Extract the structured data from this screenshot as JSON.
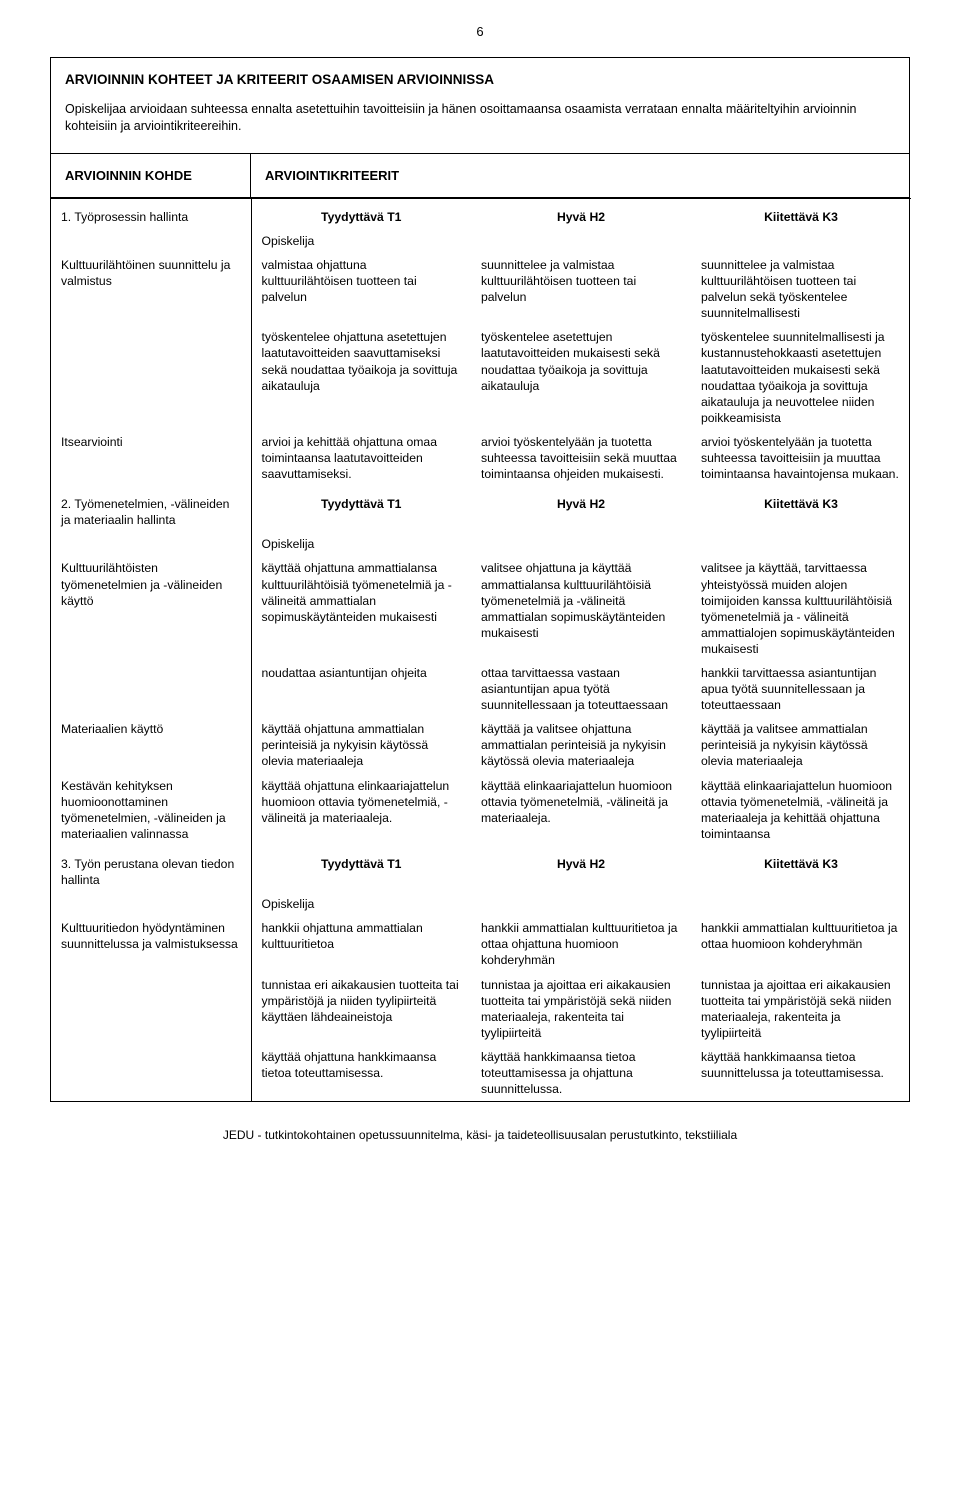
{
  "page_number": "6",
  "main_title": "ARVIOINNIN KOHTEET JA KRITEERIT OSAAMISEN ARVIOINNISSA",
  "main_desc": "Opiskelijaa arvioidaan suhteessa ennalta asetettuihin tavoitteisiin ja hänen osoittamaansa osaamista verrataan ennalta määriteltyihin arvioinnin kohteisiin ja arviointikriteereihin.",
  "col_left_title": "ARVIOINNIN KOHDE",
  "col_right_title": "ARVIOINTIKRITEERIT",
  "opiskelija_label": "Opiskelija",
  "levels": {
    "t1": "Tyydyttävä T1",
    "h2": "Hyvä H2",
    "k3": "Kiitettävä K3"
  },
  "s1": {
    "header_label": "1. Työprosessin hallinta",
    "rows": [
      {
        "label": "Kulttuurilähtöinen suunnittelu ja valmistus",
        "t1": "valmistaa ohjattuna kulttuurilähtöisen tuotteen tai palvelun",
        "h2": "suunnittelee ja valmistaa kulttuurilähtöisen tuotteen tai palvelun",
        "k3": "suunnittelee ja valmistaa kulttuurilähtöisen tuotteen tai palvelun sekä työskentelee suunnitelmallisesti"
      },
      {
        "label": "",
        "t1": "työskentelee ohjattuna asetettujen laatutavoitteiden saavuttamiseksi sekä noudattaa työaikoja ja sovittuja aikatauluja",
        "h2": "työskentelee asetettujen laatutavoitteiden mukaisesti sekä noudattaa työaikoja ja sovittuja aikatauluja",
        "k3": "työskentelee suunnitelmallisesti ja kustannustehokkaasti asetettujen laatutavoitteiden mukaisesti sekä noudattaa työaikoja ja sovittuja aikatauluja ja neuvottelee niiden poikkeamisista"
      },
      {
        "label": "Itsearviointi",
        "t1": "arvioi ja kehittää ohjattuna omaa toimintaansa laatutavoitteiden saavuttamiseksi.",
        "h2": "arvioi työskentelyään ja tuotetta suhteessa tavoitteisiin sekä muuttaa toimintaansa ohjeiden mukaisesti.",
        "k3": "arvioi työskentelyään ja tuotetta suhteessa tavoitteisiin ja muuttaa toimintaansa havaintojensa mukaan."
      }
    ]
  },
  "s2": {
    "header_label": "2. Työmenetelmien, -välineiden ja materiaalin hallinta",
    "rows": [
      {
        "label": "Kulttuurilähtöisten työmenetelmien ja -välineiden käyttö",
        "t1": "käyttää ohjattuna ammattialansa kulttuurilähtöisiä työmenetelmiä ja - välineitä ammattialan sopimuskäytänteiden mukaisesti",
        "h2": "valitsee ohjattuna ja käyttää ammattialansa kulttuurilähtöisiä työmenetelmiä ja -välineitä ammattialan sopimuskäytänteiden mukaisesti",
        "k3": "valitsee ja käyttää, tarvittaessa yhteistyössä muiden alojen toimijoiden kanssa kulttuurilähtöisiä työmenetelmiä ja - välineitä ammattialojen sopimuskäytänteiden mukaisesti"
      },
      {
        "label": "",
        "t1": "noudattaa asiantuntijan ohjeita",
        "h2": "ottaa tarvittaessa vastaan asiantuntijan apua työtä suunnitellessaan ja toteuttaessaan",
        "k3": "hankkii tarvittaessa asiantuntijan apua työtä suunnitellessaan ja toteuttaessaan"
      },
      {
        "label": "Materiaalien käyttö",
        "t1": "käyttää ohjattuna ammattialan perinteisiä ja nykyisin käytössä olevia materiaaleja",
        "h2": "käyttää ja valitsee ohjattuna ammattialan perinteisiä ja nykyisin käytössä olevia materiaaleja",
        "k3": "käyttää ja valitsee ammattialan perinteisiä ja nykyisin käytössä olevia materiaaleja"
      },
      {
        "label": "Kestävän kehityksen huomioonottaminen työmenetelmien, -välineiden ja materiaalien valinnassa",
        "t1": "käyttää ohjattuna elinkaariajattelun huomioon ottavia työmenetelmiä, - välineitä ja materiaaleja.",
        "h2": "käyttää elinkaariajattelun huomioon ottavia työmenetelmiä, -välineitä ja materiaaleja.",
        "k3": "käyttää elinkaariajattelun huomioon ottavia työmenetelmiä, -välineitä ja materiaaleja ja kehittää ohjattuna toimintaansa"
      }
    ]
  },
  "s3": {
    "header_label": "3. Työn perustana olevan tiedon hallinta",
    "rows": [
      {
        "label": "Kulttuuritiedon hyödyntäminen suunnittelussa ja valmistuksessa",
        "t1": "hankkii ohjattuna ammattialan kulttuuritietoa",
        "h2": "hankkii ammattialan kulttuuritietoa ja ottaa ohjattuna huomioon kohderyhmän",
        "k3": "hankkii ammattialan kulttuuritietoa ja ottaa huomioon kohderyhmän"
      },
      {
        "label": "",
        "t1": "tunnistaa eri aikakausien tuotteita tai ympäristöjä ja niiden tyylipiirteitä käyttäen lähdeaineistoja",
        "h2": "tunnistaa ja ajoittaa eri aikakausien tuotteita tai ympäristöjä sekä niiden materiaaleja, rakenteita tai tyylipiirteitä",
        "k3": "tunnistaa ja ajoittaa eri aikakausien tuotteita tai ympäristöjä sekä niiden materiaaleja, rakenteita ja tyylipiirteitä"
      },
      {
        "label": "",
        "t1": "käyttää ohjattuna hankkimaansa tietoa toteuttamisessa.",
        "h2": "käyttää hankkimaansa tietoa toteuttamisessa ja ohjattuna suunnittelussa.",
        "k3": "käyttää hankkimaansa tietoa suunnittelussa ja toteuttamisessa."
      }
    ]
  },
  "footer": "JEDU - tutkintokohtainen opetussuunnitelma, käsi- ja taideteollisuusalan perustutkinto, tekstiiliala"
}
